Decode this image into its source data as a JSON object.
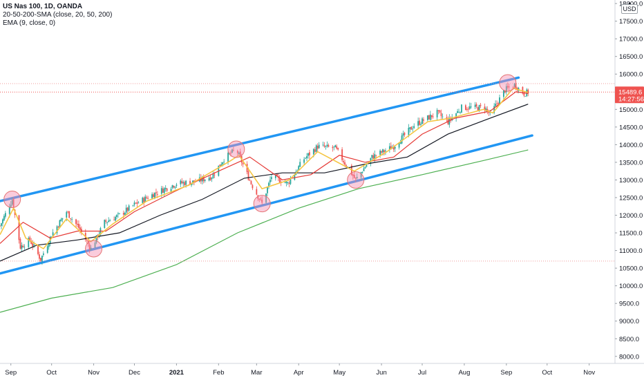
{
  "legend": {
    "title": "US Nas 100, 1D, OANDA",
    "sma_label": "20-50-200-SMA (close, 20, 50, 200)",
    "ema_label": "EMA (9, close, 0)"
  },
  "price_axis": {
    "currency": "USD",
    "ticks": [
      "8000.0",
      "8500.0",
      "9000.0",
      "9500.0",
      "10000.0",
      "10500.0",
      "11000.0",
      "11500.0",
      "12000.0",
      "12500.0",
      "13000.0",
      "13500.0",
      "14000.0",
      "14500.0",
      "15000.0",
      "15500.0",
      "16000.0",
      "16500.0",
      "17000.0",
      "17500.0",
      "18000.0"
    ],
    "current_price": "15489.6",
    "countdown": "14:27:56"
  },
  "time_axis": {
    "ticks": [
      "Sep",
      "Oct",
      "Nov",
      "Dec",
      "2021",
      "Feb",
      "Mar",
      "Apr",
      "May",
      "Jun",
      "Jul",
      "Aug",
      "Sep",
      "Oct",
      "Nov"
    ]
  },
  "colors": {
    "bull": "#26a69a",
    "bear": "#ef5350",
    "sma20": "#e53935",
    "sma50": "#131722",
    "sma200": "#4caf50",
    "ema9": "#f5c542",
    "channel": "#2196f3",
    "circle_fill": "#f48fb1",
    "circle_stroke": "#e57373",
    "price_badge": "#ef5350"
  },
  "chart_data": {
    "type": "candlestick",
    "ylim": [
      7800,
      18100
    ],
    "x_range": [
      "2020-08-24",
      "2021-11-20"
    ],
    "channel_upper": [
      [
        "2020-08-24",
        12400
      ],
      [
        "2021-09-10",
        15900
      ]
    ],
    "channel_lower": [
      [
        "2020-08-24",
        10350
      ],
      [
        "2021-09-20",
        14260
      ]
    ],
    "horizontal_lines": [
      15730,
      10700,
      15489.6
    ],
    "highlight_circles": [
      {
        "date": "2020-09-02",
        "price": 12450
      },
      {
        "date": "2020-11-01",
        "price": 11050
      },
      {
        "date": "2021-02-14",
        "price": 13870
      },
      {
        "date": "2021-03-05",
        "price": 12330
      },
      {
        "date": "2021-05-13",
        "price": 13000
      },
      {
        "date": "2021-09-02",
        "price": 15750
      }
    ],
    "close_path": [
      [
        "2020-08-24",
        11700
      ],
      [
        "2020-09-02",
        12450
      ],
      [
        "2020-09-08",
        11100
      ],
      [
        "2020-09-15",
        11300
      ],
      [
        "2020-09-23",
        10750
      ],
      [
        "2020-10-01",
        11450
      ],
      [
        "2020-10-12",
        12100
      ],
      [
        "2020-10-21",
        11650
      ],
      [
        "2020-10-30",
        11050
      ],
      [
        "2020-11-09",
        11800
      ],
      [
        "2020-11-20",
        12000
      ],
      [
        "2020-12-01",
        12300
      ],
      [
        "2020-12-15",
        12600
      ],
      [
        "2021-01-01",
        12900
      ],
      [
        "2021-01-15",
        12950
      ],
      [
        "2021-01-27",
        13100
      ],
      [
        "2021-02-05",
        13600
      ],
      [
        "2021-02-14",
        13870
      ],
      [
        "2021-02-25",
        12900
      ],
      [
        "2021-03-05",
        12330
      ],
      [
        "2021-03-12",
        13100
      ],
      [
        "2021-03-24",
        12900
      ],
      [
        "2021-04-05",
        13600
      ],
      [
        "2021-04-15",
        13950
      ],
      [
        "2021-04-28",
        13900
      ],
      [
        "2021-05-13",
        13000
      ],
      [
        "2021-05-25",
        13650
      ],
      [
        "2021-06-10",
        13950
      ],
      [
        "2021-06-25",
        14550
      ],
      [
        "2021-07-12",
        14900
      ],
      [
        "2021-07-20",
        14650
      ],
      [
        "2021-07-30",
        15050
      ],
      [
        "2021-08-16",
        15050
      ],
      [
        "2021-08-20",
        14850
      ],
      [
        "2021-08-31",
        15550
      ],
      [
        "2021-09-07",
        15700
      ],
      [
        "2021-09-14",
        15450
      ],
      [
        "2021-09-17",
        15489.6
      ]
    ],
    "sma20_path": [
      [
        "2020-08-24",
        11200
      ],
      [
        "2020-09-10",
        11800
      ],
      [
        "2020-09-30",
        11350
      ],
      [
        "2020-10-20",
        11550
      ],
      [
        "2020-11-10",
        11550
      ],
      [
        "2020-12-01",
        12100
      ],
      [
        "2021-01-01",
        12700
      ],
      [
        "2021-02-01",
        13250
      ],
      [
        "2021-02-24",
        13650
      ],
      [
        "2021-03-20",
        13000
      ],
      [
        "2021-04-10",
        13150
      ],
      [
        "2021-05-01",
        13700
      ],
      [
        "2021-05-20",
        13500
      ],
      [
        "2021-06-10",
        13650
      ],
      [
        "2021-07-01",
        14300
      ],
      [
        "2021-07-25",
        14750
      ],
      [
        "2021-08-20",
        14950
      ],
      [
        "2021-09-08",
        15500
      ],
      [
        "2021-09-17",
        15450
      ]
    ],
    "sma50_path": [
      [
        "2020-08-24",
        10700
      ],
      [
        "2020-09-20",
        11150
      ],
      [
        "2020-10-20",
        11300
      ],
      [
        "2020-11-20",
        11500
      ],
      [
        "2020-12-20",
        12000
      ],
      [
        "2021-01-20",
        12450
      ],
      [
        "2021-02-20",
        13050
      ],
      [
        "2021-03-20",
        13200
      ],
      [
        "2021-04-20",
        13200
      ],
      [
        "2021-05-20",
        13450
      ],
      [
        "2021-06-20",
        13650
      ],
      [
        "2021-07-20",
        14300
      ],
      [
        "2021-08-20",
        14750
      ],
      [
        "2021-09-17",
        15150
      ]
    ],
    "sma200_path": [
      [
        "2020-08-24",
        9250
      ],
      [
        "2020-10-01",
        9650
      ],
      [
        "2020-11-15",
        9950
      ],
      [
        "2021-01-01",
        10600
      ],
      [
        "2021-02-15",
        11500
      ],
      [
        "2021-04-01",
        12200
      ],
      [
        "2021-05-15",
        12750
      ],
      [
        "2021-07-01",
        13150
      ],
      [
        "2021-08-15",
        13550
      ],
      [
        "2021-09-17",
        13850
      ]
    ],
    "ema9_path": [
      [
        "2020-08-24",
        11450
      ],
      [
        "2020-09-03",
        12200
      ],
      [
        "2020-09-12",
        11350
      ],
      [
        "2020-09-25",
        11050
      ],
      [
        "2020-10-12",
        11900
      ],
      [
        "2020-10-30",
        11250
      ],
      [
        "2020-11-15",
        11750
      ],
      [
        "2020-12-10",
        12400
      ],
      [
        "2021-01-10",
        12850
      ],
      [
        "2021-02-10",
        13550
      ],
      [
        "2021-02-16",
        13700
      ],
      [
        "2021-03-05",
        12750
      ],
      [
        "2021-03-25",
        13000
      ],
      [
        "2021-04-15",
        13800
      ],
      [
        "2021-05-12",
        13250
      ],
      [
        "2021-06-05",
        13800
      ],
      [
        "2021-07-05",
        14650
      ],
      [
        "2021-07-22",
        14750
      ],
      [
        "2021-08-15",
        15000
      ],
      [
        "2021-08-22",
        14900
      ],
      [
        "2021-09-06",
        15600
      ],
      [
        "2021-09-17",
        15480
      ]
    ]
  }
}
